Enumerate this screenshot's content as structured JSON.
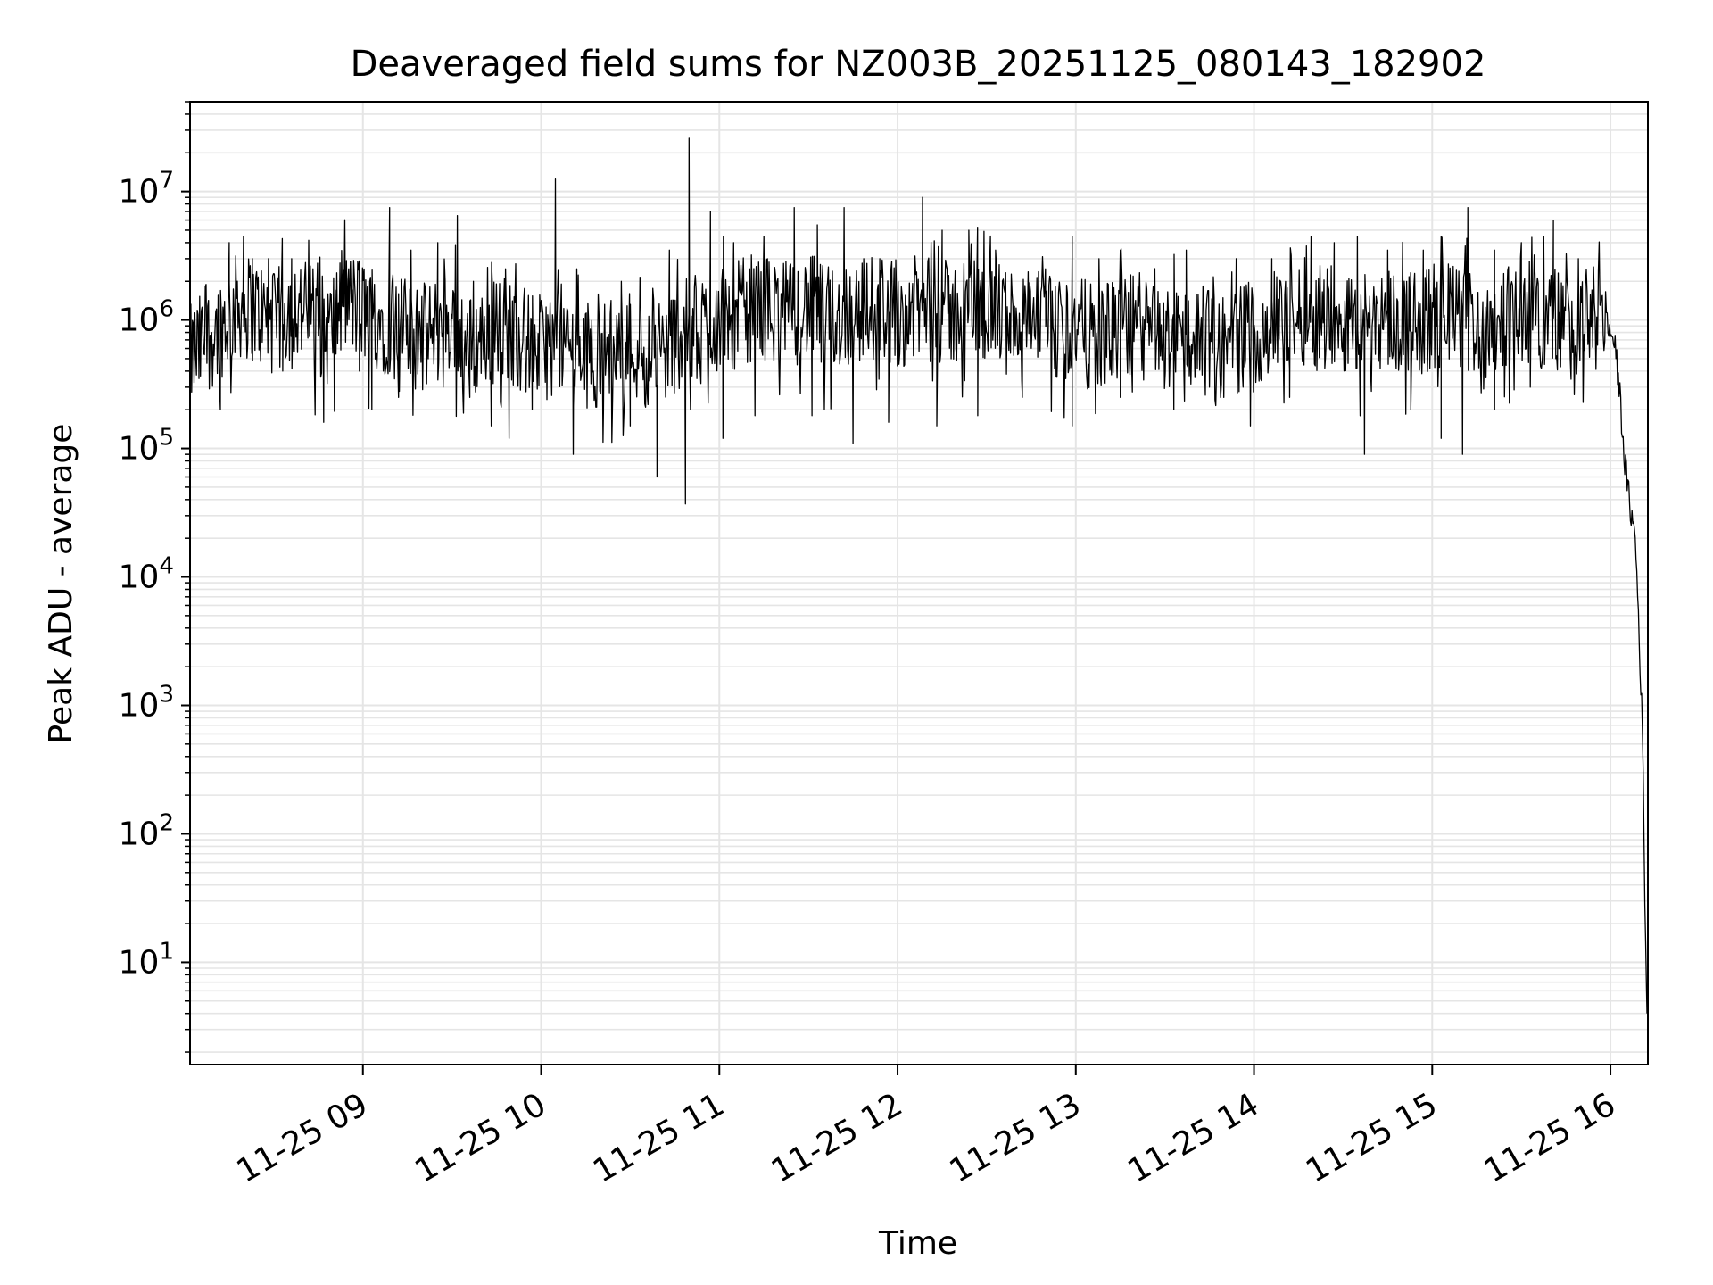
{
  "chart_data": {
    "type": "line",
    "title": "Deaveraged field sums for NZ003B_20251125_080143_182902",
    "xlabel": "Time",
    "ylabel": "Peak ADU - average",
    "yscale": "log",
    "ylim": [
      1.6,
      50000000
    ],
    "xlim_hours": [
      8.03,
      16.21
    ],
    "grid": true,
    "line_color": "#000000",
    "xticks": [
      {
        "hour": 9,
        "label": "11-25 09"
      },
      {
        "hour": 10,
        "label": "11-25 10"
      },
      {
        "hour": 11,
        "label": "11-25 11"
      },
      {
        "hour": 12,
        "label": "11-25 12"
      },
      {
        "hour": 13,
        "label": "11-25 13"
      },
      {
        "hour": 14,
        "label": "11-25 14"
      },
      {
        "hour": 15,
        "label": "11-25 15"
      },
      {
        "hour": 16,
        "label": "11-25 16"
      }
    ],
    "yticks": [
      {
        "exp": 1,
        "base": "10",
        "sup": "1"
      },
      {
        "exp": 2,
        "base": "10",
        "sup": "2"
      },
      {
        "exp": 3,
        "base": "10",
        "sup": "3"
      },
      {
        "exp": 4,
        "base": "10",
        "sup": "4"
      },
      {
        "exp": 5,
        "base": "10",
        "sup": "5"
      },
      {
        "exp": 6,
        "base": "10",
        "sup": "6"
      },
      {
        "exp": 7,
        "base": "10",
        "sup": "7"
      }
    ],
    "series": [
      {
        "name": "Peak ADU - average",
        "x": [
          8.03,
          8.1,
          8.2,
          8.3,
          8.4,
          8.5,
          8.6,
          8.7,
          8.8,
          8.9,
          9.0,
          9.1,
          9.2,
          9.3,
          9.4,
          9.5,
          9.6,
          9.7,
          9.8,
          9.9,
          10.0,
          10.1,
          10.2,
          10.3,
          10.4,
          10.5,
          10.6,
          10.7,
          10.8,
          10.9,
          11.0,
          11.1,
          11.2,
          11.3,
          11.4,
          11.5,
          11.6,
          11.7,
          11.8,
          11.9,
          12.0,
          12.1,
          12.2,
          12.3,
          12.4,
          12.5,
          12.6,
          12.7,
          12.8,
          12.9,
          13.0,
          13.1,
          13.2,
          13.3,
          13.4,
          13.5,
          13.6,
          13.7,
          13.8,
          13.9,
          14.0,
          14.1,
          14.2,
          14.3,
          14.4,
          14.5,
          14.6,
          14.7,
          14.8,
          14.9,
          15.0,
          15.1,
          15.2,
          15.3,
          15.4,
          15.5,
          15.6,
          15.7,
          15.8,
          15.9,
          15.98,
          16.02,
          16.05,
          16.08,
          16.11,
          16.14,
          16.16,
          16.18,
          16.19,
          16.2,
          16.205
        ],
        "y": [
          500000,
          650000,
          900000,
          1300000,
          1200000,
          900000,
          1300000,
          1100000,
          800000,
          1400000,
          1200000,
          1000000,
          900000,
          700000,
          800000,
          1000000,
          600000,
          800000,
          900000,
          700000,
          600000,
          700000,
          600000,
          500000,
          600000,
          700000,
          500000,
          600000,
          800000,
          900000,
          1000000,
          1100000,
          1300000,
          1200000,
          1100000,
          1300000,
          1000000,
          1100000,
          1200000,
          1300000,
          1100000,
          1200000,
          1200000,
          1100000,
          1300000,
          1200000,
          1100000,
          1000000,
          900000,
          800000,
          900000,
          700000,
          800000,
          900000,
          800000,
          700000,
          800000,
          700000,
          600000,
          700000,
          800000,
          900000,
          1000000,
          1200000,
          1100000,
          1000000,
          900000,
          1100000,
          1000000,
          1000000,
          900000,
          1100000,
          1000000,
          900000,
          1100000,
          1200000,
          1100000,
          1000000,
          900000,
          1000000,
          900000,
          700000,
          300000,
          80000,
          35000,
          20000,
          4000,
          600,
          60,
          10,
          4
        ],
        "spikes": [
          {
            "x": 8.25,
            "y": 4000000
          },
          {
            "x": 8.33,
            "y": 4500000
          },
          {
            "x": 8.38,
            "y": 3000000
          },
          {
            "x": 8.47,
            "y": 3000000
          },
          {
            "x": 8.6,
            "y": 3000000
          },
          {
            "x": 8.72,
            "y": 2500000
          },
          {
            "x": 8.92,
            "y": 2500000
          },
          {
            "x": 9.15,
            "y": 7500000
          },
          {
            "x": 9.27,
            "y": 3500000
          },
          {
            "x": 9.42,
            "y": 4000000
          },
          {
            "x": 9.53,
            "y": 6500000
          },
          {
            "x": 9.62,
            "y": 2000000
          },
          {
            "x": 9.8,
            "y": 2500000
          },
          {
            "x": 10.08,
            "y": 12500000
          },
          {
            "x": 10.2,
            "y": 2500000
          },
          {
            "x": 10.45,
            "y": 2000000
          },
          {
            "x": 10.72,
            "y": 3500000
          },
          {
            "x": 10.83,
            "y": 26000000
          },
          {
            "x": 10.95,
            "y": 7000000
          },
          {
            "x": 11.08,
            "y": 4000000
          },
          {
            "x": 11.25,
            "y": 4500000
          },
          {
            "x": 11.42,
            "y": 7500000
          },
          {
            "x": 11.55,
            "y": 5500000
          },
          {
            "x": 11.7,
            "y": 7500000
          },
          {
            "x": 11.9,
            "y": 3000000
          },
          {
            "x": 12.14,
            "y": 9000000
          },
          {
            "x": 12.25,
            "y": 5000000
          },
          {
            "x": 12.4,
            "y": 5000000
          },
          {
            "x": 12.55,
            "y": 3500000
          },
          {
            "x": 12.83,
            "y": 2500000
          },
          {
            "x": 12.98,
            "y": 4500000
          },
          {
            "x": 13.13,
            "y": 3000000
          },
          {
            "x": 13.25,
            "y": 3500000
          },
          {
            "x": 13.62,
            "y": 3500000
          },
          {
            "x": 13.9,
            "y": 3000000
          },
          {
            "x": 14.1,
            "y": 3000000
          },
          {
            "x": 14.32,
            "y": 4500000
          },
          {
            "x": 14.45,
            "y": 4000000
          },
          {
            "x": 14.58,
            "y": 4500000
          },
          {
            "x": 14.75,
            "y": 3500000
          },
          {
            "x": 14.95,
            "y": 3500000
          },
          {
            "x": 15.05,
            "y": 4500000
          },
          {
            "x": 15.2,
            "y": 7500000
          },
          {
            "x": 15.35,
            "y": 3500000
          },
          {
            "x": 15.5,
            "y": 4000000
          },
          {
            "x": 15.68,
            "y": 6000000
          },
          {
            "x": 15.82,
            "y": 3000000
          }
        ],
        "dips": [
          {
            "x": 8.08,
            "y": 350000
          },
          {
            "x": 8.2,
            "y": 200000
          },
          {
            "x": 8.55,
            "y": 400000
          },
          {
            "x": 8.78,
            "y": 160000
          },
          {
            "x": 8.98,
            "y": 400000
          },
          {
            "x": 9.05,
            "y": 200000
          },
          {
            "x": 9.2,
            "y": 250000
          },
          {
            "x": 9.45,
            "y": 300000
          },
          {
            "x": 9.6,
            "y": 250000
          },
          {
            "x": 9.72,
            "y": 150000
          },
          {
            "x": 9.82,
            "y": 120000
          },
          {
            "x": 9.95,
            "y": 200000
          },
          {
            "x": 10.18,
            "y": 90000
          },
          {
            "x": 10.35,
            "y": 200000
          },
          {
            "x": 10.5,
            "y": 150000
          },
          {
            "x": 10.65,
            "y": 60000
          },
          {
            "x": 10.81,
            "y": 37000
          },
          {
            "x": 11.02,
            "y": 120000
          },
          {
            "x": 11.2,
            "y": 180000
          },
          {
            "x": 11.52,
            "y": 180000
          },
          {
            "x": 11.75,
            "y": 110000
          },
          {
            "x": 11.95,
            "y": 160000
          },
          {
            "x": 12.22,
            "y": 150000
          },
          {
            "x": 12.45,
            "y": 180000
          },
          {
            "x": 12.7,
            "y": 250000
          },
          {
            "x": 12.98,
            "y": 150000
          },
          {
            "x": 13.25,
            "y": 250000
          },
          {
            "x": 13.55,
            "y": 200000
          },
          {
            "x": 13.75,
            "y": 300000
          },
          {
            "x": 13.98,
            "y": 150000
          },
          {
            "x": 14.2,
            "y": 250000
          },
          {
            "x": 14.62,
            "y": 90000
          },
          {
            "x": 14.88,
            "y": 200000
          },
          {
            "x": 15.05,
            "y": 120000
          },
          {
            "x": 15.17,
            "y": 90000
          },
          {
            "x": 15.35,
            "y": 200000
          },
          {
            "x": 15.55,
            "y": 300000
          }
        ]
      }
    ]
  }
}
